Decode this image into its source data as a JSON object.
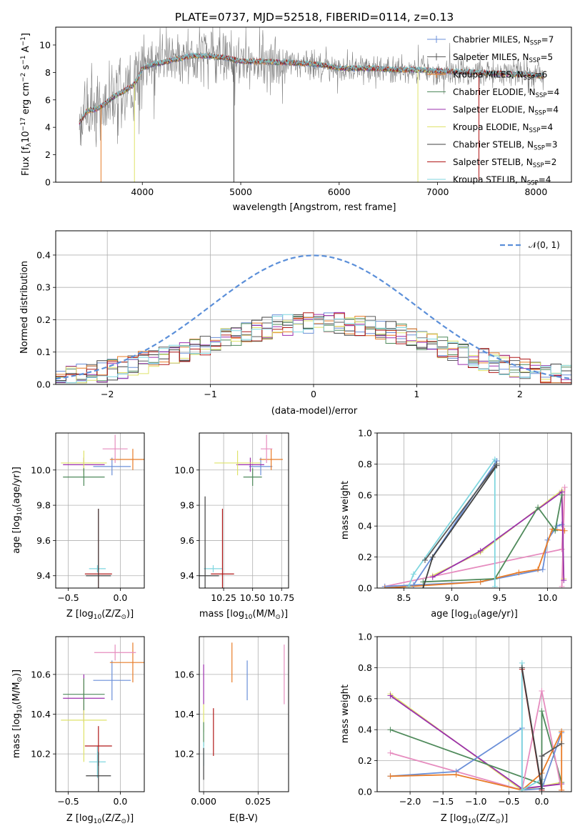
{
  "chart_data": [
    {
      "id": "spectrum",
      "type": "line",
      "title": "PLATE=0737, MJD=52518, FIBERID=0114, z=0.13",
      "xlabel": "wavelength [Angstrom, rest frame]",
      "ylabel": "Flux [f",
      "ylabel_sub": "λ",
      "ylabel_rest": "10",
      "ylabel_sup": "−17",
      "ylabel_tail": " erg cm",
      "ylabel_sup2": "−2",
      "ylabel_tail2": " s",
      "ylabel_sup3": "−1",
      "ylabel_tail3": " A",
      "ylabel_sup4": "−1",
      "ylabel_end": "]",
      "xlim": [
        3120,
        8360
      ],
      "ylim": [
        0,
        11.3
      ],
      "xticks": [
        4000,
        5000,
        6000,
        7000,
        8000
      ],
      "yticks": [
        0,
        2,
        4,
        6,
        8,
        10
      ],
      "legend_position": "right",
      "grid": false,
      "legend": [
        {
          "label": "Chabrier MILES, N",
          "sub": "SSP",
          "tail": "=7",
          "color": "#6a8fd8",
          "marker": true
        },
        {
          "label": "Salpeter MILES, N",
          "sub": "SSP",
          "tail": "=5",
          "color": "#5a5a5a",
          "marker": true
        },
        {
          "label": "Kroupa MILES, N",
          "sub": "SSP",
          "tail": "=6",
          "color": "#e87c28",
          "marker": true
        },
        {
          "label": "Chabrier ELODIE, N",
          "sub": "SSP",
          "tail": "=4",
          "color": "#4f8a5b",
          "marker": false
        },
        {
          "label": "Salpeter ELODIE, N",
          "sub": "SSP",
          "tail": "=4",
          "color": "#9b2fae",
          "marker": false
        },
        {
          "label": "Kroupa ELODIE, N",
          "sub": "SSP",
          "tail": "=4",
          "color": "#dfe36a",
          "marker": false
        },
        {
          "label": "Chabrier STELIB, N",
          "sub": "SSP",
          "tail": "=3",
          "color": "#404040",
          "marker": false
        },
        {
          "label": "Salpeter STELIB, N",
          "sub": "SSP",
          "tail": "=2",
          "color": "#b01818",
          "marker": false
        },
        {
          "label": "Kroupa STELIB, N",
          "sub": "SSP",
          "tail": "=4",
          "color": "#7fd6df",
          "marker": false
        }
      ],
      "data_color": "#808080",
      "model_color": "#7fd6df",
      "model_knots": [
        [
          3360,
          4.3
        ],
        [
          3440,
          5.2
        ],
        [
          3520,
          5.3
        ],
        [
          3600,
          5.6
        ],
        [
          3700,
          6.2
        ],
        [
          3800,
          6.6
        ],
        [
          3900,
          7.0
        ],
        [
          3960,
          7.6
        ],
        [
          4000,
          8.3
        ],
        [
          4100,
          8.6
        ],
        [
          4200,
          8.7
        ],
        [
          4300,
          8.9
        ],
        [
          4500,
          9.2
        ],
        [
          4700,
          9.2
        ],
        [
          4900,
          9.0
        ],
        [
          5000,
          8.8
        ],
        [
          5200,
          8.8
        ],
        [
          5500,
          8.7
        ],
        [
          5800,
          8.6
        ],
        [
          6000,
          8.3
        ],
        [
          6300,
          8.3
        ],
        [
          6600,
          8.2
        ],
        [
          6800,
          8.2
        ],
        [
          7000,
          8.1
        ],
        [
          7400,
          8.0
        ],
        [
          7700,
          7.9
        ],
        [
          8000,
          7.8
        ],
        [
          8080,
          7.7
        ]
      ]
    },
    {
      "id": "residual-histogram",
      "type": "histogram",
      "xlabel": "(data-model)/error",
      "ylabel": "Normed distribution",
      "xlim": [
        -2.5,
        2.5
      ],
      "ylim": [
        0,
        0.475
      ],
      "xticks": [
        -2,
        -1,
        0,
        1,
        2
      ],
      "yticks": [
        0.0,
        0.1,
        0.2,
        0.3,
        0.4
      ],
      "grid": true,
      "bin_width": 0.1,
      "legend": {
        "label": "𝒩(0, 1)",
        "color": "#5b8fd9",
        "position": "top-right"
      },
      "series_colors": [
        "#6a8fd8",
        "#5a5a5a",
        "#e87c28",
        "#4f8a5b",
        "#9b2fae",
        "#dfe36a",
        "#404040",
        "#b01818",
        "#7fd6df"
      ]
    },
    {
      "id": "age-vs-Z",
      "type": "errorbar",
      "xlabel": "Z [log",
      "xlabel_sub": "10",
      "xlabel_tail": "(Z/Z",
      "xlabel_sub2": "⊙",
      "xlabel_end": ")]",
      "ylabel": "age  [log",
      "ylabel_sub": "10",
      "ylabel_tail": "(age/yr)]",
      "xlim": [
        -0.62,
        0.23
      ],
      "ylim": [
        9.33,
        10.21
      ],
      "xticks": [
        -0.5,
        0.0
      ],
      "yticks": [
        9.4,
        9.6,
        9.8,
        10.0
      ],
      "grid": true,
      "points": [
        {
          "x": -0.08,
          "xerr": 0.18,
          "y": 10.02,
          "yerr": 0.05,
          "color": "#6a8fd8"
        },
        {
          "x": 0.12,
          "xerr": 0.22,
          "y": 10.06,
          "yerr": 0.06,
          "color": "#e87c28"
        },
        {
          "x": -0.35,
          "xerr": 0.2,
          "y": 10.03,
          "yerr": 0.04,
          "color": "#9b2fae"
        },
        {
          "x": -0.05,
          "xerr": 0.12,
          "y": 10.12,
          "yerr": 0.08,
          "color": "#e68cbf"
        },
        {
          "x": -0.35,
          "xerr": 0.22,
          "y": 10.04,
          "yerr": 0.07,
          "color": "#dfe36a"
        },
        {
          "x": -0.35,
          "xerr": 0.2,
          "y": 9.96,
          "yerr": 0.05,
          "color": "#4f8a5b"
        },
        {
          "x": -0.22,
          "xerr": 0.08,
          "y": 9.44,
          "yerr": 0.02,
          "color": "#7fd6df"
        },
        {
          "x": -0.21,
          "xerr": 0.13,
          "y": 9.41,
          "yerr": 0.37,
          "color": "#b01818"
        },
        {
          "x": -0.21,
          "xerr": 0.12,
          "y": 9.4,
          "yerr": 0.38,
          "color": "#404040"
        }
      ]
    },
    {
      "id": "age-vs-mass",
      "type": "errorbar",
      "xlabel": "mass [log",
      "xlabel_sub": "10",
      "xlabel_tail": "(M/M",
      "xlabel_sub2": "⊙",
      "xlabel_end": ")]",
      "xlim": [
        10.04,
        10.81
      ],
      "ylim": [
        9.33,
        10.21
      ],
      "xticks": [
        10.25,
        10.5,
        10.75
      ],
      "xtick_labels": [
        "10.25",
        "10.50",
        "10.75"
      ],
      "yticks": [
        9.4,
        9.6,
        9.8,
        10.0
      ],
      "grid": true,
      "points": [
        {
          "x": 10.57,
          "xerr": 0.1,
          "y": 10.02,
          "yerr": 0.05,
          "color": "#6a8fd8"
        },
        {
          "x": 10.66,
          "xerr": 0.1,
          "y": 10.06,
          "yerr": 0.06,
          "color": "#e87c28"
        },
        {
          "x": 10.48,
          "xerr": 0.12,
          "y": 10.03,
          "yerr": 0.04,
          "color": "#9b2fae"
        },
        {
          "x": 10.62,
          "xerr": 0.05,
          "y": 10.12,
          "yerr": 0.08,
          "color": "#e68cbf"
        },
        {
          "x": 10.37,
          "xerr": 0.2,
          "y": 10.04,
          "yerr": 0.07,
          "color": "#dfe36a"
        },
        {
          "x": 10.5,
          "xerr": 0.08,
          "y": 9.96,
          "yerr": 0.05,
          "color": "#4f8a5b"
        },
        {
          "x": 10.16,
          "xerr": 0.08,
          "y": 9.44,
          "yerr": 0.02,
          "color": "#7fd6df"
        },
        {
          "x": 10.24,
          "xerr": 0.1,
          "y": 9.41,
          "yerr": 0.37,
          "color": "#b01818"
        },
        {
          "x": 10.09,
          "xerr": 0.12,
          "y": 9.4,
          "yerr": 0.45,
          "color": "#404040"
        }
      ]
    },
    {
      "id": "mass-weight-vs-age",
      "type": "line",
      "xlabel": "age  [log",
      "xlabel_sub": "10",
      "xlabel_tail": "(age/yr)]",
      "ylabel": "mass weight",
      "xlim": [
        8.22,
        10.25
      ],
      "ylim": [
        0,
        1.0
      ],
      "xticks": [
        8.5,
        9.0,
        9.5,
        10.0
      ],
      "yticks": [
        0.0,
        0.2,
        0.4,
        0.6,
        0.8,
        1.0
      ],
      "grid": true,
      "series": [
        {
          "color": "#e68cbf",
          "points": [
            [
              8.3,
              0.01
            ],
            [
              10.15,
              0.25
            ],
            [
              10.18,
              0.65
            ],
            [
              10.15,
              0.01
            ]
          ]
        },
        {
          "color": "#6a8fd8",
          "points": [
            [
              8.3,
              0.01
            ],
            [
              9.3,
              0.04
            ],
            [
              9.95,
              0.12
            ],
            [
              10.0,
              0.31
            ],
            [
              10.1,
              0.4
            ],
            [
              10.15,
              0.41
            ]
          ]
        },
        {
          "color": "#e87c28",
          "points": [
            [
              8.3,
              0.0
            ],
            [
              9.3,
              0.04
            ],
            [
              9.7,
              0.1
            ],
            [
              9.9,
              0.12
            ],
            [
              10.05,
              0.38
            ],
            [
              10.18,
              0.37
            ]
          ]
        },
        {
          "color": "#dfe36a",
          "points": [
            [
              8.8,
              0.08
            ],
            [
              9.3,
              0.23
            ],
            [
              10.15,
              0.63
            ],
            [
              10.17,
              0.06
            ]
          ]
        },
        {
          "color": "#9b2fae",
          "points": [
            [
              8.8,
              0.07
            ],
            [
              9.3,
              0.24
            ],
            [
              10.15,
              0.62
            ],
            [
              10.17,
              0.05
            ]
          ]
        },
        {
          "color": "#4f8a5b",
          "points": [
            [
              8.7,
              0.04
            ],
            [
              9.45,
              0.06
            ],
            [
              9.9,
              0.52
            ],
            [
              10.08,
              0.37
            ],
            [
              10.15,
              0.6
            ]
          ]
        },
        {
          "color": "#7fd6df",
          "points": [
            [
              8.55,
              0.01
            ],
            [
              8.6,
              0.09
            ],
            [
              9.45,
              0.83
            ],
            [
              9.45,
              0.01
            ]
          ]
        },
        {
          "color": "#6a8fd8",
          "points": [
            [
              8.6,
              0.02
            ],
            [
              9.47,
              0.82
            ]
          ]
        },
        {
          "color": "#404040",
          "points": [
            [
              8.7,
              0.0
            ],
            [
              8.8,
              0.2
            ],
            [
              9.47,
              0.79
            ]
          ]
        },
        {
          "color": "#5a5a5a",
          "points": [
            [
              8.72,
              0.18
            ],
            [
              9.47,
              0.8
            ]
          ]
        }
      ]
    },
    {
      "id": "mass-vs-Z",
      "type": "errorbar",
      "xlabel": "Z [log",
      "xlabel_sub": "10",
      "xlabel_tail": "(Z/Z",
      "xlabel_sub2": "⊙",
      "xlabel_end": ")]",
      "ylabel": "mass [log",
      "ylabel_sub": "10",
      "ylabel_tail": "(M/M",
      "ylabel_sub2": "⊙",
      "ylabel_end": ")]",
      "xlim": [
        -0.62,
        0.23
      ],
      "ylim": [
        10.01,
        10.79
      ],
      "xticks": [
        -0.5,
        0.0
      ],
      "yticks": [
        10.2,
        10.4,
        10.6
      ],
      "grid": true,
      "points": [
        {
          "x": -0.08,
          "xerr": 0.18,
          "y": 10.57,
          "yerr": 0.1,
          "color": "#6a8fd8"
        },
        {
          "x": 0.12,
          "xerr": 0.22,
          "y": 10.66,
          "yerr": 0.1,
          "color": "#e87c28"
        },
        {
          "x": -0.35,
          "xerr": 0.2,
          "y": 10.48,
          "yerr": 0.12,
          "color": "#9b2fae"
        },
        {
          "x": -0.05,
          "xerr": 0.2,
          "y": 10.71,
          "yerr": 0.04,
          "color": "#e68cbf"
        },
        {
          "x": -0.35,
          "xerr": 0.22,
          "y": 10.37,
          "yerr": 0.21,
          "color": "#dfe36a"
        },
        {
          "x": -0.35,
          "xerr": 0.2,
          "y": 10.5,
          "yerr": 0.08,
          "color": "#4f8a5b"
        },
        {
          "x": -0.22,
          "xerr": 0.08,
          "y": 10.16,
          "yerr": 0.08,
          "color": "#7fd6df"
        },
        {
          "x": -0.21,
          "xerr": 0.13,
          "y": 10.24,
          "yerr": 0.1,
          "color": "#b01818"
        },
        {
          "x": -0.21,
          "xerr": 0.12,
          "y": 10.09,
          "yerr": 0.12,
          "color": "#404040"
        }
      ]
    },
    {
      "id": "mass-vs-EBV",
      "type": "errorbar",
      "xlabel": "E(B-V)",
      "xlim": [
        -0.002,
        0.039
      ],
      "ylim": [
        10.01,
        10.79
      ],
      "xticks": [
        0.0,
        0.025
      ],
      "xtick_labels": [
        "0.000",
        "0.025"
      ],
      "yticks": [
        10.2,
        10.4,
        10.6
      ],
      "grid": true,
      "points": [
        {
          "x": 0.02,
          "y": 10.57,
          "yerr": 0.1,
          "color": "#6a8fd8"
        },
        {
          "x": 0.013,
          "y": 10.66,
          "yerr": 0.1,
          "color": "#e87c28"
        },
        {
          "x": 0.0,
          "y": 10.55,
          "yerr": 0.1,
          "color": "#9b2fae"
        },
        {
          "x": 0.037,
          "y": 10.6,
          "yerr": 0.15,
          "color": "#e68cbf"
        },
        {
          "x": 0.0,
          "y": 10.38,
          "yerr": 0.07,
          "color": "#dfe36a"
        },
        {
          "x": 0.0,
          "y": 10.3,
          "yerr": 0.06,
          "color": "#4f8a5b"
        },
        {
          "x": 0.0,
          "y": 10.2,
          "yerr": 0.06,
          "color": "#7fd6df"
        },
        {
          "x": 0.0045,
          "y": 10.31,
          "yerr": 0.12,
          "color": "#b01818"
        },
        {
          "x": 0.0,
          "y": 10.15,
          "yerr": 0.08,
          "color": "#404040"
        }
      ]
    },
    {
      "id": "mass-weight-vs-Z",
      "type": "line",
      "xlabel": "Z [log",
      "xlabel_sub": "10",
      "xlabel_tail": "(Z/Z",
      "xlabel_sub2": "⊙",
      "xlabel_end": ")]",
      "ylabel": "mass weight",
      "xlim": [
        -2.5,
        0.45
      ],
      "ylim": [
        0,
        1.0
      ],
      "xticks": [
        -2.0,
        -1.5,
        -1.0,
        -0.5,
        0.0
      ],
      "yticks": [
        0.0,
        0.2,
        0.4,
        0.6,
        0.8,
        1.0
      ],
      "grid": true,
      "series": [
        {
          "color": "#dfe36a",
          "points": [
            [
              -2.3,
              0.63
            ],
            [
              -0.3,
              0.01
            ],
            [
              0.3,
              0.06
            ]
          ]
        },
        {
          "color": "#9b2fae",
          "points": [
            [
              -2.3,
              0.62
            ],
            [
              -0.3,
              0.02
            ],
            [
              0.3,
              0.05
            ]
          ]
        },
        {
          "color": "#4f8a5b",
          "points": [
            [
              -2.3,
              0.4
            ],
            [
              0.0,
              0.05
            ],
            [
              0.0,
              0.52
            ],
            [
              0.3,
              0.06
            ]
          ]
        },
        {
          "color": "#e68cbf",
          "points": [
            [
              -2.3,
              0.25
            ],
            [
              -1.3,
              0.13
            ],
            [
              -0.3,
              0.01
            ],
            [
              0.0,
              0.65
            ],
            [
              0.3,
              0.01
            ]
          ]
        },
        {
          "color": "#6a8fd8",
          "points": [
            [
              -2.3,
              0.1
            ],
            [
              -1.3,
              0.13
            ],
            [
              -0.3,
              0.41
            ],
            [
              -0.3,
              0.01
            ],
            [
              0.0,
              0.02
            ],
            [
              0.3,
              0.38
            ]
          ]
        },
        {
          "color": "#e87c28",
          "points": [
            [
              -2.3,
              0.1
            ],
            [
              -1.3,
              0.11
            ],
            [
              -0.3,
              0.01
            ],
            [
              0.0,
              0.12
            ],
            [
              0.3,
              0.39
            ],
            [
              0.3,
              0.01
            ]
          ]
        },
        {
          "color": "#7fd6df",
          "points": [
            [
              -0.3,
              0.83
            ],
            [
              -0.3,
              0.01
            ],
            [
              0.0,
              0.08
            ]
          ]
        },
        {
          "color": "#b01818",
          "points": [
            [
              -0.3,
              0.79
            ],
            [
              0.0,
              0.01
            ]
          ]
        },
        {
          "color": "#404040",
          "points": [
            [
              -0.3,
              0.8
            ],
            [
              0.0,
              0.02
            ],
            [
              0.0,
              0.23
            ]
          ]
        },
        {
          "color": "#5a5a5a",
          "points": [
            [
              0.0,
              0.23
            ],
            [
              0.3,
              0.31
            ]
          ]
        }
      ]
    }
  ]
}
